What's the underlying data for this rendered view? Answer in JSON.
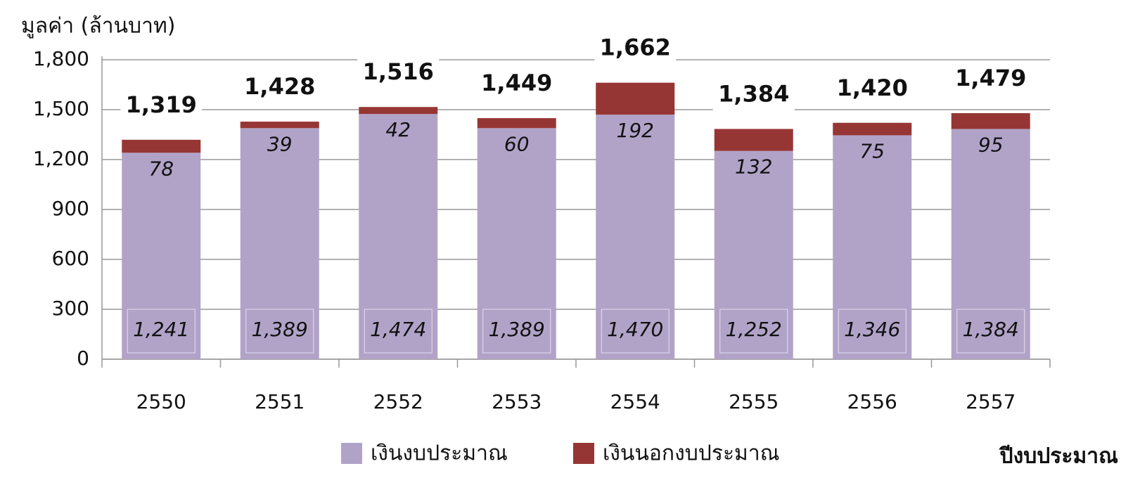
{
  "chart_data": {
    "type": "stacked_bar",
    "y_label": "มูลค่า (ล้านบาท)",
    "x_label": "ปีงบประมาณ",
    "categories": [
      "2550",
      "2551",
      "2552",
      "2553",
      "2554",
      "2555",
      "2556",
      "2557"
    ],
    "series": [
      {
        "name": "เงินงบประมาณ",
        "color": "#b1a3c8",
        "values": [
          1241,
          1389,
          1474,
          1389,
          1470,
          1252,
          1346,
          1384
        ],
        "value_labels": [
          "1,241",
          "1,389",
          "1,474",
          "1,389",
          "1,470",
          "1,252",
          "1,346",
          "1,384"
        ]
      },
      {
        "name": "เงินนอกงบประมาณ",
        "color": "#963634",
        "values": [
          78,
          39,
          42,
          60,
          192,
          132,
          75,
          95
        ]
      }
    ],
    "totals": [
      1319,
      1428,
      1516,
      1449,
      1662,
      1384,
      1420,
      1479
    ],
    "total_labels": [
      "1,319",
      "1,428",
      "1,516",
      "1,449",
      "1,662",
      "1,384",
      "1,420",
      "1,479"
    ],
    "ylim": [
      0,
      1800
    ],
    "yticks": [
      0,
      300,
      600,
      900,
      {
        "value": 1200,
        "label": "1,200"
      },
      {
        "value": 1500,
        "label": "1,500"
      },
      {
        "value": 1800,
        "label": "1,800"
      }
    ],
    "grid": true,
    "legend": "bottom"
  }
}
